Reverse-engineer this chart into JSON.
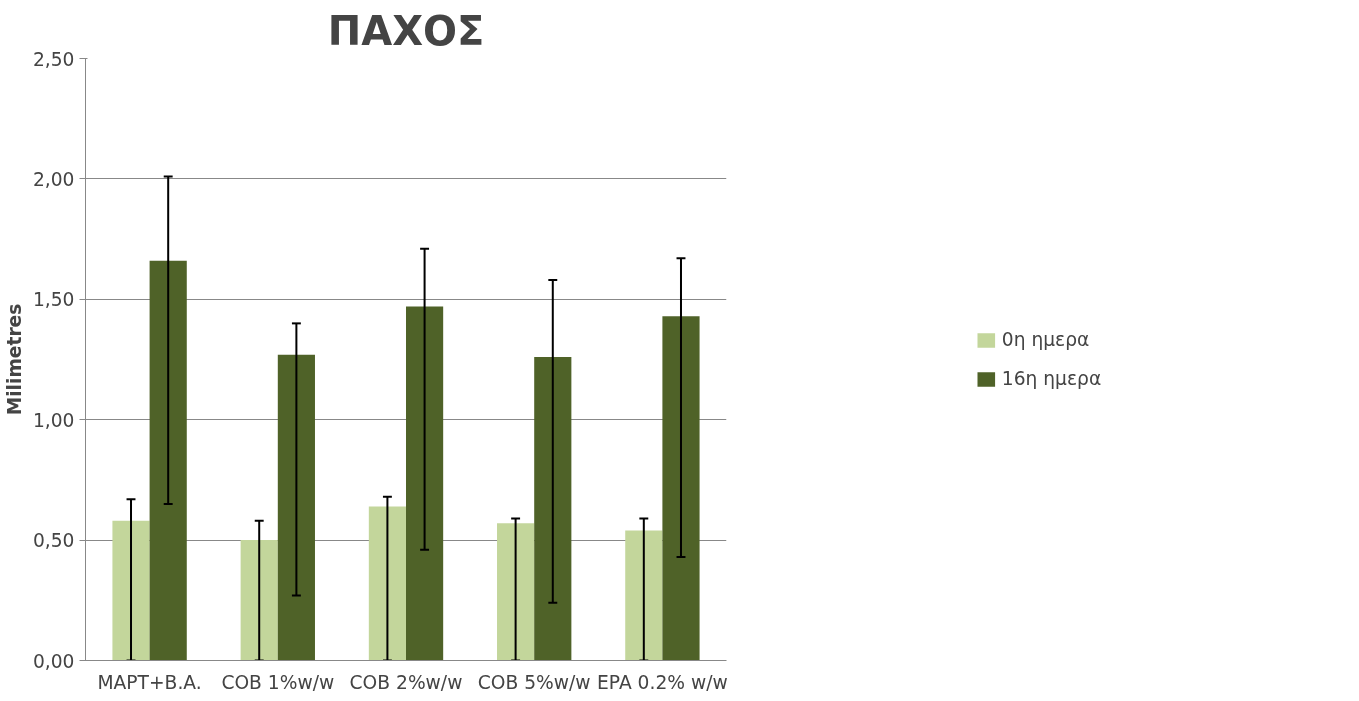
{
  "chart_data": {
    "type": "bar",
    "title": "ΠΑΧΟΣ",
    "ylabel": "Milimetres",
    "categories": [
      "MAPT+B.A.",
      "COB 1%w/w",
      "COB 2%w/w",
      "COB 5%w/w",
      "EPA 0.2% w/w"
    ],
    "series": [
      {
        "name": "0η ημερα",
        "color": "#c3d69b",
        "values": [
          0.58,
          0.5,
          0.64,
          0.57,
          0.54
        ],
        "errors": [
          [
            0,
            0.67
          ],
          [
            0,
            0.58
          ],
          [
            0,
            0.68
          ],
          [
            0,
            0.59
          ],
          [
            0,
            0.59
          ]
        ]
      },
      {
        "name": "16η ημερα",
        "color": "#4f6228",
        "values": [
          1.66,
          1.27,
          1.47,
          1.26,
          1.43
        ],
        "errors": [
          [
            0.65,
            2.01
          ],
          [
            0.27,
            1.4
          ],
          [
            0.46,
            1.71
          ],
          [
            0.24,
            1.58
          ],
          [
            0.43,
            1.67
          ]
        ]
      }
    ],
    "ylim": [
      0,
      2.5
    ],
    "yticks": [
      {
        "value": 0,
        "label": "0,00"
      },
      {
        "value": 0.5,
        "label": "0,50"
      },
      {
        "value": 1,
        "label": "1,00"
      },
      {
        "value": 1.5,
        "label": "1,50"
      },
      {
        "value": 2,
        "label": "2,00"
      },
      {
        "value": 2.5,
        "label": "2,50"
      }
    ],
    "grid": "y",
    "legend": "right"
  }
}
